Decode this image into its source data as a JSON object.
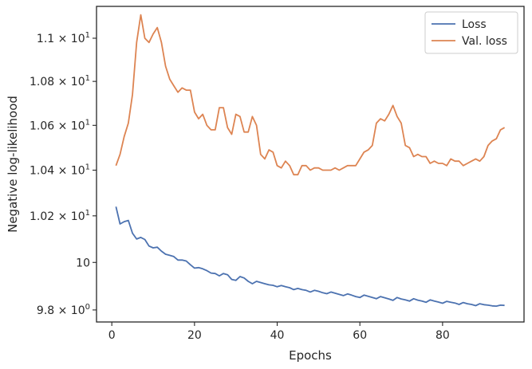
{
  "chart_data": {
    "type": "line",
    "xlabel": "Epochs",
    "ylabel": "Negative log-likelihood",
    "xlim": [
      -3.7,
      99.7
    ],
    "ylim": [
      9.75,
      11.15
    ],
    "y_scale": "log",
    "grid": false,
    "legend_position": "top-right",
    "x_ticks": [
      0,
      20,
      40,
      60,
      80
    ],
    "x_tick_labels": [
      "0",
      "20",
      "40",
      "60",
      "80"
    ],
    "y_ticks": [
      9.8,
      10.0,
      10.2,
      10.4,
      10.6,
      10.8,
      11.0
    ],
    "y_tick_labels": [
      {
        "base": "9.8",
        "exp": "0"
      },
      {
        "base": "10",
        "exp": ""
      },
      {
        "base": "1.02",
        "exp": "1"
      },
      {
        "base": "1.04",
        "exp": "1"
      },
      {
        "base": "1.06",
        "exp": "1"
      },
      {
        "base": "1.08",
        "exp": "1"
      },
      {
        "base": "1.1",
        "exp": "1"
      }
    ],
    "x": [
      1,
      2,
      3,
      4,
      5,
      6,
      7,
      8,
      9,
      10,
      11,
      12,
      13,
      14,
      15,
      16,
      17,
      18,
      19,
      20,
      21,
      22,
      23,
      24,
      25,
      26,
      27,
      28,
      29,
      30,
      31,
      32,
      33,
      34,
      35,
      36,
      37,
      38,
      39,
      40,
      41,
      42,
      43,
      44,
      45,
      46,
      47,
      48,
      49,
      50,
      51,
      52,
      53,
      54,
      55,
      56,
      57,
      58,
      59,
      60,
      61,
      62,
      63,
      64,
      65,
      66,
      67,
      68,
      69,
      70,
      71,
      72,
      73,
      74,
      75,
      76,
      77,
      78,
      79,
      80,
      81,
      82,
      83,
      84,
      85,
      86,
      87,
      88,
      89,
      90,
      91,
      92,
      93,
      94,
      95
    ],
    "series": [
      {
        "name": "Loss",
        "color": "#4c72b0",
        "values": [
          10.24,
          10.165,
          10.175,
          10.18,
          10.125,
          10.1,
          10.107,
          10.098,
          10.07,
          10.062,
          10.065,
          10.048,
          10.035,
          10.03,
          10.025,
          10.01,
          10.01,
          10.006,
          9.99,
          9.976,
          9.978,
          9.973,
          9.965,
          9.955,
          9.953,
          9.943,
          9.953,
          9.948,
          9.928,
          9.924,
          9.94,
          9.934,
          9.92,
          9.91,
          9.92,
          9.915,
          9.91,
          9.905,
          9.903,
          9.897,
          9.902,
          9.897,
          9.893,
          9.885,
          9.89,
          9.885,
          9.882,
          9.875,
          9.882,
          9.878,
          9.872,
          9.868,
          9.875,
          9.87,
          9.865,
          9.86,
          9.867,
          9.862,
          9.856,
          9.852,
          9.862,
          9.857,
          9.852,
          9.847,
          9.856,
          9.851,
          9.846,
          9.84,
          9.852,
          9.846,
          9.842,
          9.837,
          9.847,
          9.841,
          9.837,
          9.832,
          9.842,
          9.837,
          9.833,
          9.828,
          9.836,
          9.832,
          9.829,
          9.823,
          9.831,
          9.826,
          9.823,
          9.818,
          9.826,
          9.822,
          9.82,
          9.817,
          9.816,
          9.82,
          9.819
        ]
      },
      {
        "name": "Val. loss",
        "color": "#dd8452",
        "values": [
          10.42,
          10.47,
          10.55,
          10.61,
          10.74,
          10.98,
          11.11,
          11.0,
          10.98,
          11.02,
          11.05,
          10.98,
          10.87,
          10.81,
          10.78,
          10.75,
          10.77,
          10.76,
          10.76,
          10.66,
          10.63,
          10.65,
          10.6,
          10.58,
          10.58,
          10.68,
          10.68,
          10.59,
          10.56,
          10.65,
          10.64,
          10.57,
          10.57,
          10.64,
          10.6,
          10.47,
          10.45,
          10.49,
          10.48,
          10.42,
          10.41,
          10.44,
          10.42,
          10.38,
          10.38,
          10.42,
          10.42,
          10.4,
          10.41,
          10.41,
          10.4,
          10.4,
          10.4,
          10.41,
          10.4,
          10.41,
          10.42,
          10.42,
          10.42,
          10.45,
          10.48,
          10.49,
          10.51,
          10.61,
          10.63,
          10.62,
          10.65,
          10.69,
          10.64,
          10.61,
          10.51,
          10.5,
          10.46,
          10.47,
          10.46,
          10.46,
          10.43,
          10.44,
          10.43,
          10.43,
          10.42,
          10.45,
          10.44,
          10.44,
          10.42,
          10.43,
          10.44,
          10.45,
          10.44,
          10.46,
          10.51,
          10.53,
          10.54,
          10.58,
          10.59
        ]
      }
    ]
  }
}
